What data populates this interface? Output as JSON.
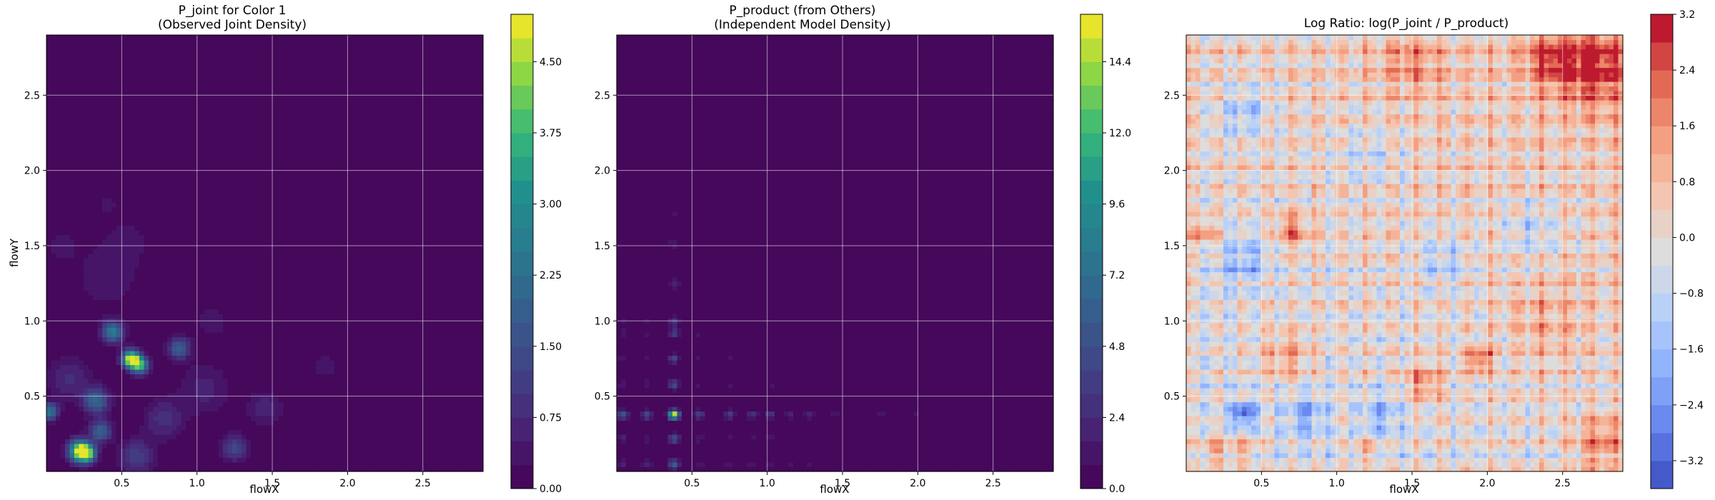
{
  "chart_data": [
    {
      "type": "heatmap",
      "title": "P_joint for Color 1\n(Observed Joint Density)",
      "xlabel": "flowX",
      "ylabel": "flowY",
      "xlim": [
        0.0,
        2.9
      ],
      "ylim": [
        0.0,
        2.9
      ],
      "xticks": [
        "0.5",
        "1.0",
        "1.5",
        "2.0",
        "2.5"
      ],
      "yticks": [
        "0.5",
        "1.0",
        "1.5",
        "2.0",
        "2.5"
      ],
      "grid": true,
      "colormap": "viridis",
      "colorbar": {
        "min": 0.0,
        "max": 5.0,
        "levels": 20,
        "ticks": [
          0.0,
          0.75,
          1.5,
          2.25,
          3.0,
          3.75,
          4.5
        ],
        "tick_labels": [
          "0.00",
          "0.75",
          "1.50",
          "2.25",
          "3.00",
          "3.75",
          "4.50"
        ]
      },
      "baseline_value": 0.0,
      "peaks": [
        {
          "x": 0.22,
          "y": 0.14,
          "value": 4.6,
          "spread": 0.05
        },
        {
          "x": 0.27,
          "y": 0.12,
          "value": 3.4,
          "spread": 0.04
        },
        {
          "x": 0.56,
          "y": 0.75,
          "value": 4.9,
          "spread": 0.04
        },
        {
          "x": 0.62,
          "y": 0.71,
          "value": 3.6,
          "spread": 0.04
        },
        {
          "x": 0.44,
          "y": 0.93,
          "value": 2.6,
          "spread": 0.05
        },
        {
          "x": 0.33,
          "y": 0.47,
          "value": 2.1,
          "spread": 0.06
        },
        {
          "x": 0.36,
          "y": 0.27,
          "value": 2.0,
          "spread": 0.05
        },
        {
          "x": 0.02,
          "y": 0.4,
          "value": 2.4,
          "spread": 0.04
        },
        {
          "x": 0.88,
          "y": 0.82,
          "value": 1.9,
          "spread": 0.05
        },
        {
          "x": 1.25,
          "y": 0.16,
          "value": 1.4,
          "spread": 0.06
        },
        {
          "x": 0.78,
          "y": 0.35,
          "value": 0.9,
          "spread": 0.09
        },
        {
          "x": 0.15,
          "y": 0.62,
          "value": 0.8,
          "spread": 0.1
        },
        {
          "x": 1.45,
          "y": 0.42,
          "value": 0.7,
          "spread": 0.08
        },
        {
          "x": 1.05,
          "y": 0.55,
          "value": 0.6,
          "spread": 0.12
        },
        {
          "x": 0.4,
          "y": 1.3,
          "value": 0.45,
          "spread": 0.15
        },
        {
          "x": 0.55,
          "y": 1.55,
          "value": 0.3,
          "spread": 0.12
        },
        {
          "x": 0.4,
          "y": 1.78,
          "value": 0.35,
          "spread": 0.05
        },
        {
          "x": 0.1,
          "y": 1.5,
          "value": 0.35,
          "spread": 0.08
        },
        {
          "x": 1.85,
          "y": 0.7,
          "value": 0.35,
          "spread": 0.08
        },
        {
          "x": 1.1,
          "y": 1.0,
          "value": 0.35,
          "spread": 0.1
        },
        {
          "x": 0.6,
          "y": 0.1,
          "value": 1.2,
          "spread": 0.08
        }
      ]
    },
    {
      "type": "heatmap",
      "title": "P_product (from Others)\n(Independent Model Density)",
      "xlabel": "flowX",
      "ylabel": "",
      "xlim": [
        0.0,
        2.9
      ],
      "ylim": [
        0.0,
        2.9
      ],
      "xticks": [
        "0.5",
        "1.0",
        "1.5",
        "2.0",
        "2.5"
      ],
      "yticks": [
        "0.5",
        "1.0",
        "1.5",
        "2.0",
        "2.5"
      ],
      "grid": true,
      "colormap": "viridis",
      "colorbar": {
        "min": 0.0,
        "max": 16.0,
        "levels": 20,
        "ticks": [
          0.0,
          2.4,
          4.8,
          7.2,
          9.6,
          12.0,
          14.4
        ],
        "tick_labels": [
          "0.0",
          "2.4",
          "4.8",
          "7.2",
          "9.6",
          "12.0",
          "14.4"
        ]
      },
      "baseline_value": 0.0,
      "marginal_x": [
        {
          "x": 0.38,
          "value": 1.0
        },
        {
          "x": 0.04,
          "value": 0.35
        },
        {
          "x": 0.2,
          "value": 0.3
        },
        {
          "x": 0.55,
          "value": 0.25
        },
        {
          "x": 0.75,
          "value": 0.22
        },
        {
          "x": 0.9,
          "value": 0.2
        },
        {
          "x": 1.02,
          "value": 0.22
        },
        {
          "x": 1.15,
          "value": 0.15
        },
        {
          "x": 1.28,
          "value": 0.15
        },
        {
          "x": 1.45,
          "value": 0.12
        },
        {
          "x": 1.75,
          "value": 0.1
        },
        {
          "x": 2.0,
          "value": 0.06
        }
      ],
      "marginal_y": [
        {
          "y": 0.38,
          "value": 1.0
        },
        {
          "y": 0.05,
          "value": 0.4
        },
        {
          "y": 0.22,
          "value": 0.35
        },
        {
          "y": 0.58,
          "value": 0.3
        },
        {
          "y": 0.75,
          "value": 0.28
        },
        {
          "y": 0.92,
          "value": 0.25
        },
        {
          "y": 1.0,
          "value": 0.22
        },
        {
          "y": 1.25,
          "value": 0.15
        },
        {
          "y": 1.52,
          "value": 0.1
        },
        {
          "y": 1.72,
          "value": 0.08
        }
      ],
      "peak_value": 15.5
    },
    {
      "type": "heatmap",
      "title": "Log Ratio: log(P_joint / P_product)",
      "xlabel": "flowX",
      "ylabel": "",
      "xlim": [
        0.0,
        2.9
      ],
      "ylim": [
        0.0,
        2.9
      ],
      "xticks": [
        "0.5",
        "1.0",
        "1.5",
        "2.0",
        "2.5"
      ],
      "yticks": [
        "0.5",
        "1.0",
        "1.5",
        "2.0",
        "2.5"
      ],
      "grid": true,
      "colormap": "coolwarm",
      "colorbar": {
        "min": -3.6,
        "max": 3.2,
        "levels": 17,
        "ticks": [
          -3.2,
          -2.4,
          -1.6,
          -0.8,
          0.0,
          0.8,
          1.6,
          2.4,
          3.2
        ],
        "tick_labels": [
          "−3.2",
          "−2.4",
          "−1.6",
          "−0.8",
          "0.0",
          "0.8",
          "1.6",
          "2.4",
          "3.2"
        ]
      },
      "regions": [
        {
          "x": 0.65,
          "y": 0.78,
          "value": 1.4,
          "spread": 0.12
        },
        {
          "x": 1.95,
          "y": 0.75,
          "value": 2.4,
          "spread": 0.06
        },
        {
          "x": 1.58,
          "y": 0.6,
          "value": 1.7,
          "spread": 0.09
        },
        {
          "x": 0.7,
          "y": 1.6,
          "value": 1.8,
          "spread": 0.08
        },
        {
          "x": 0.12,
          "y": 1.58,
          "value": 1.6,
          "spread": 0.06
        },
        {
          "x": 0.18,
          "y": 0.15,
          "value": 1.6,
          "spread": 0.07
        },
        {
          "x": 0.38,
          "y": 0.15,
          "value": 1.2,
          "spread": 0.07
        },
        {
          "x": 1.2,
          "y": 0.15,
          "value": 1.3,
          "spread": 0.06
        },
        {
          "x": 2.7,
          "y": 2.7,
          "value": 2.6,
          "spread": 0.18
        },
        {
          "x": 2.75,
          "y": 0.2,
          "value": 1.8,
          "spread": 0.12
        },
        {
          "x": 2.4,
          "y": 2.75,
          "value": 1.7,
          "spread": 0.12
        },
        {
          "x": 1.5,
          "y": 2.72,
          "value": 1.2,
          "spread": 0.14
        },
        {
          "x": 2.4,
          "y": 1.0,
          "value": 0.9,
          "spread": 0.2
        },
        {
          "x": 0.38,
          "y": 0.38,
          "value": -2.9,
          "spread": 0.06
        },
        {
          "x": 0.8,
          "y": 0.38,
          "value": -1.6,
          "spread": 0.1
        },
        {
          "x": 1.3,
          "y": 0.38,
          "value": -1.5,
          "spread": 0.1
        },
        {
          "x": 0.38,
          "y": 1.4,
          "value": -1.6,
          "spread": 0.12
        },
        {
          "x": 0.38,
          "y": 2.4,
          "value": -1.4,
          "spread": 0.12
        },
        {
          "x": 1.7,
          "y": 1.4,
          "value": -1.2,
          "spread": 0.12
        },
        {
          "x": 2.3,
          "y": 1.6,
          "value": -1.0,
          "spread": 0.14
        },
        {
          "x": 1.2,
          "y": 2.1,
          "value": -0.9,
          "spread": 0.14
        }
      ]
    }
  ]
}
